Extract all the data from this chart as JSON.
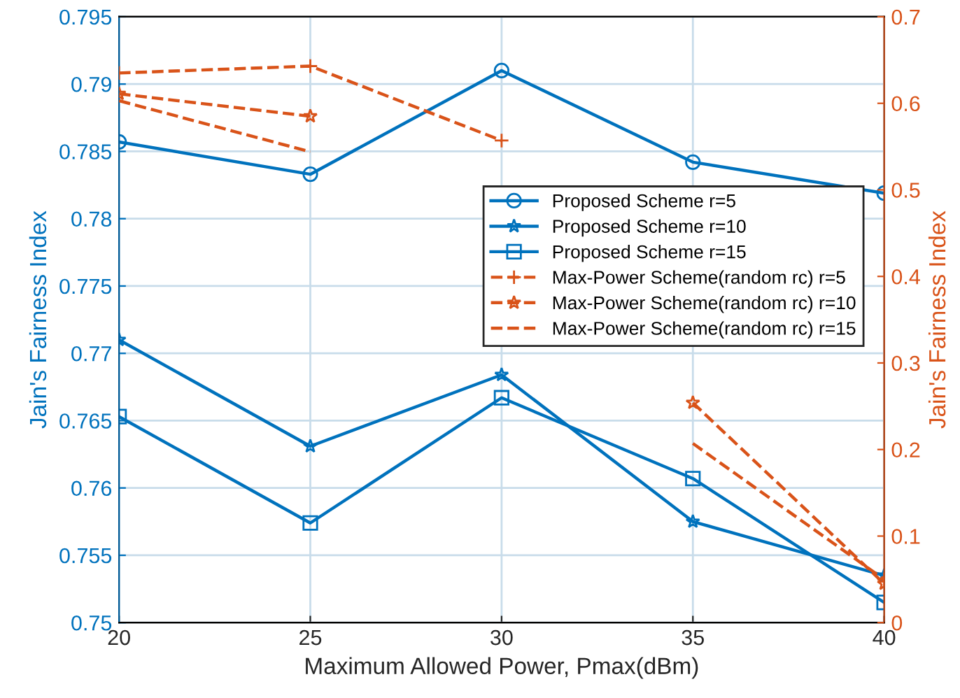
{
  "chart_data": {
    "type": "line",
    "xlabel": "Maximum Allowed Power, Pmax(dBm)",
    "ylabel": "Jain's Fairness Index",
    "y2label": "Jain's Fairness Index",
    "x": [
      20,
      25,
      30,
      35,
      40
    ],
    "xlim": [
      20,
      40
    ],
    "xticks": [
      20,
      25,
      30,
      35,
      40
    ],
    "ylim": [
      0.75,
      0.795
    ],
    "yticks": [
      0.75,
      0.755,
      0.76,
      0.765,
      0.77,
      0.775,
      0.78,
      0.785,
      0.79,
      0.795
    ],
    "y2lim": [
      0,
      0.7
    ],
    "y2ticks": [
      0,
      0.1,
      0.2,
      0.3,
      0.4,
      0.5,
      0.6,
      0.7
    ],
    "grid": true,
    "legend": "right",
    "series": [
      {
        "name": "Proposed Scheme r=5",
        "color": "#0072bd",
        "marker": "circle",
        "line_style": "solid",
        "values": [
          0.7857,
          0.7833,
          0.791,
          0.7842,
          0.7819
        ]
      },
      {
        "name": "Proposed Scheme r=10",
        "color": "#0072bd",
        "marker": "star",
        "line_style": "solid",
        "values": [
          0.771,
          0.7631,
          0.7684,
          0.7575,
          0.7535
        ]
      },
      {
        "name": "Proposed Scheme r=15",
        "color": "#0072bd",
        "marker": "square",
        "line_style": "solid",
        "values": [
          0.7653,
          0.7574,
          0.7667,
          0.7607,
          0.7515
        ]
      },
      {
        "name": "Max-Power Scheme(random rc) r=5",
        "color": "#d95319",
        "marker": "cross",
        "line_style": "dashed",
        "axis": "y2",
        "values": [
          0.635,
          0.643,
          0.557,
          null,
          0.05
        ]
      },
      {
        "name": "Max-Power Scheme(random rc) r=10",
        "color": "#d95319",
        "marker": "star",
        "line_style": "dashed",
        "axis": "y2",
        "values": [
          0.611,
          0.585,
          null,
          0.254,
          0.045
        ]
      },
      {
        "name": "Max-Power Scheme(random rc) r=15",
        "color": "#d95319",
        "marker": "none",
        "line_style": "dashed",
        "axis": "y2",
        "values": [
          0.603,
          0.544,
          null,
          0.207,
          0.05
        ]
      }
    ]
  }
}
